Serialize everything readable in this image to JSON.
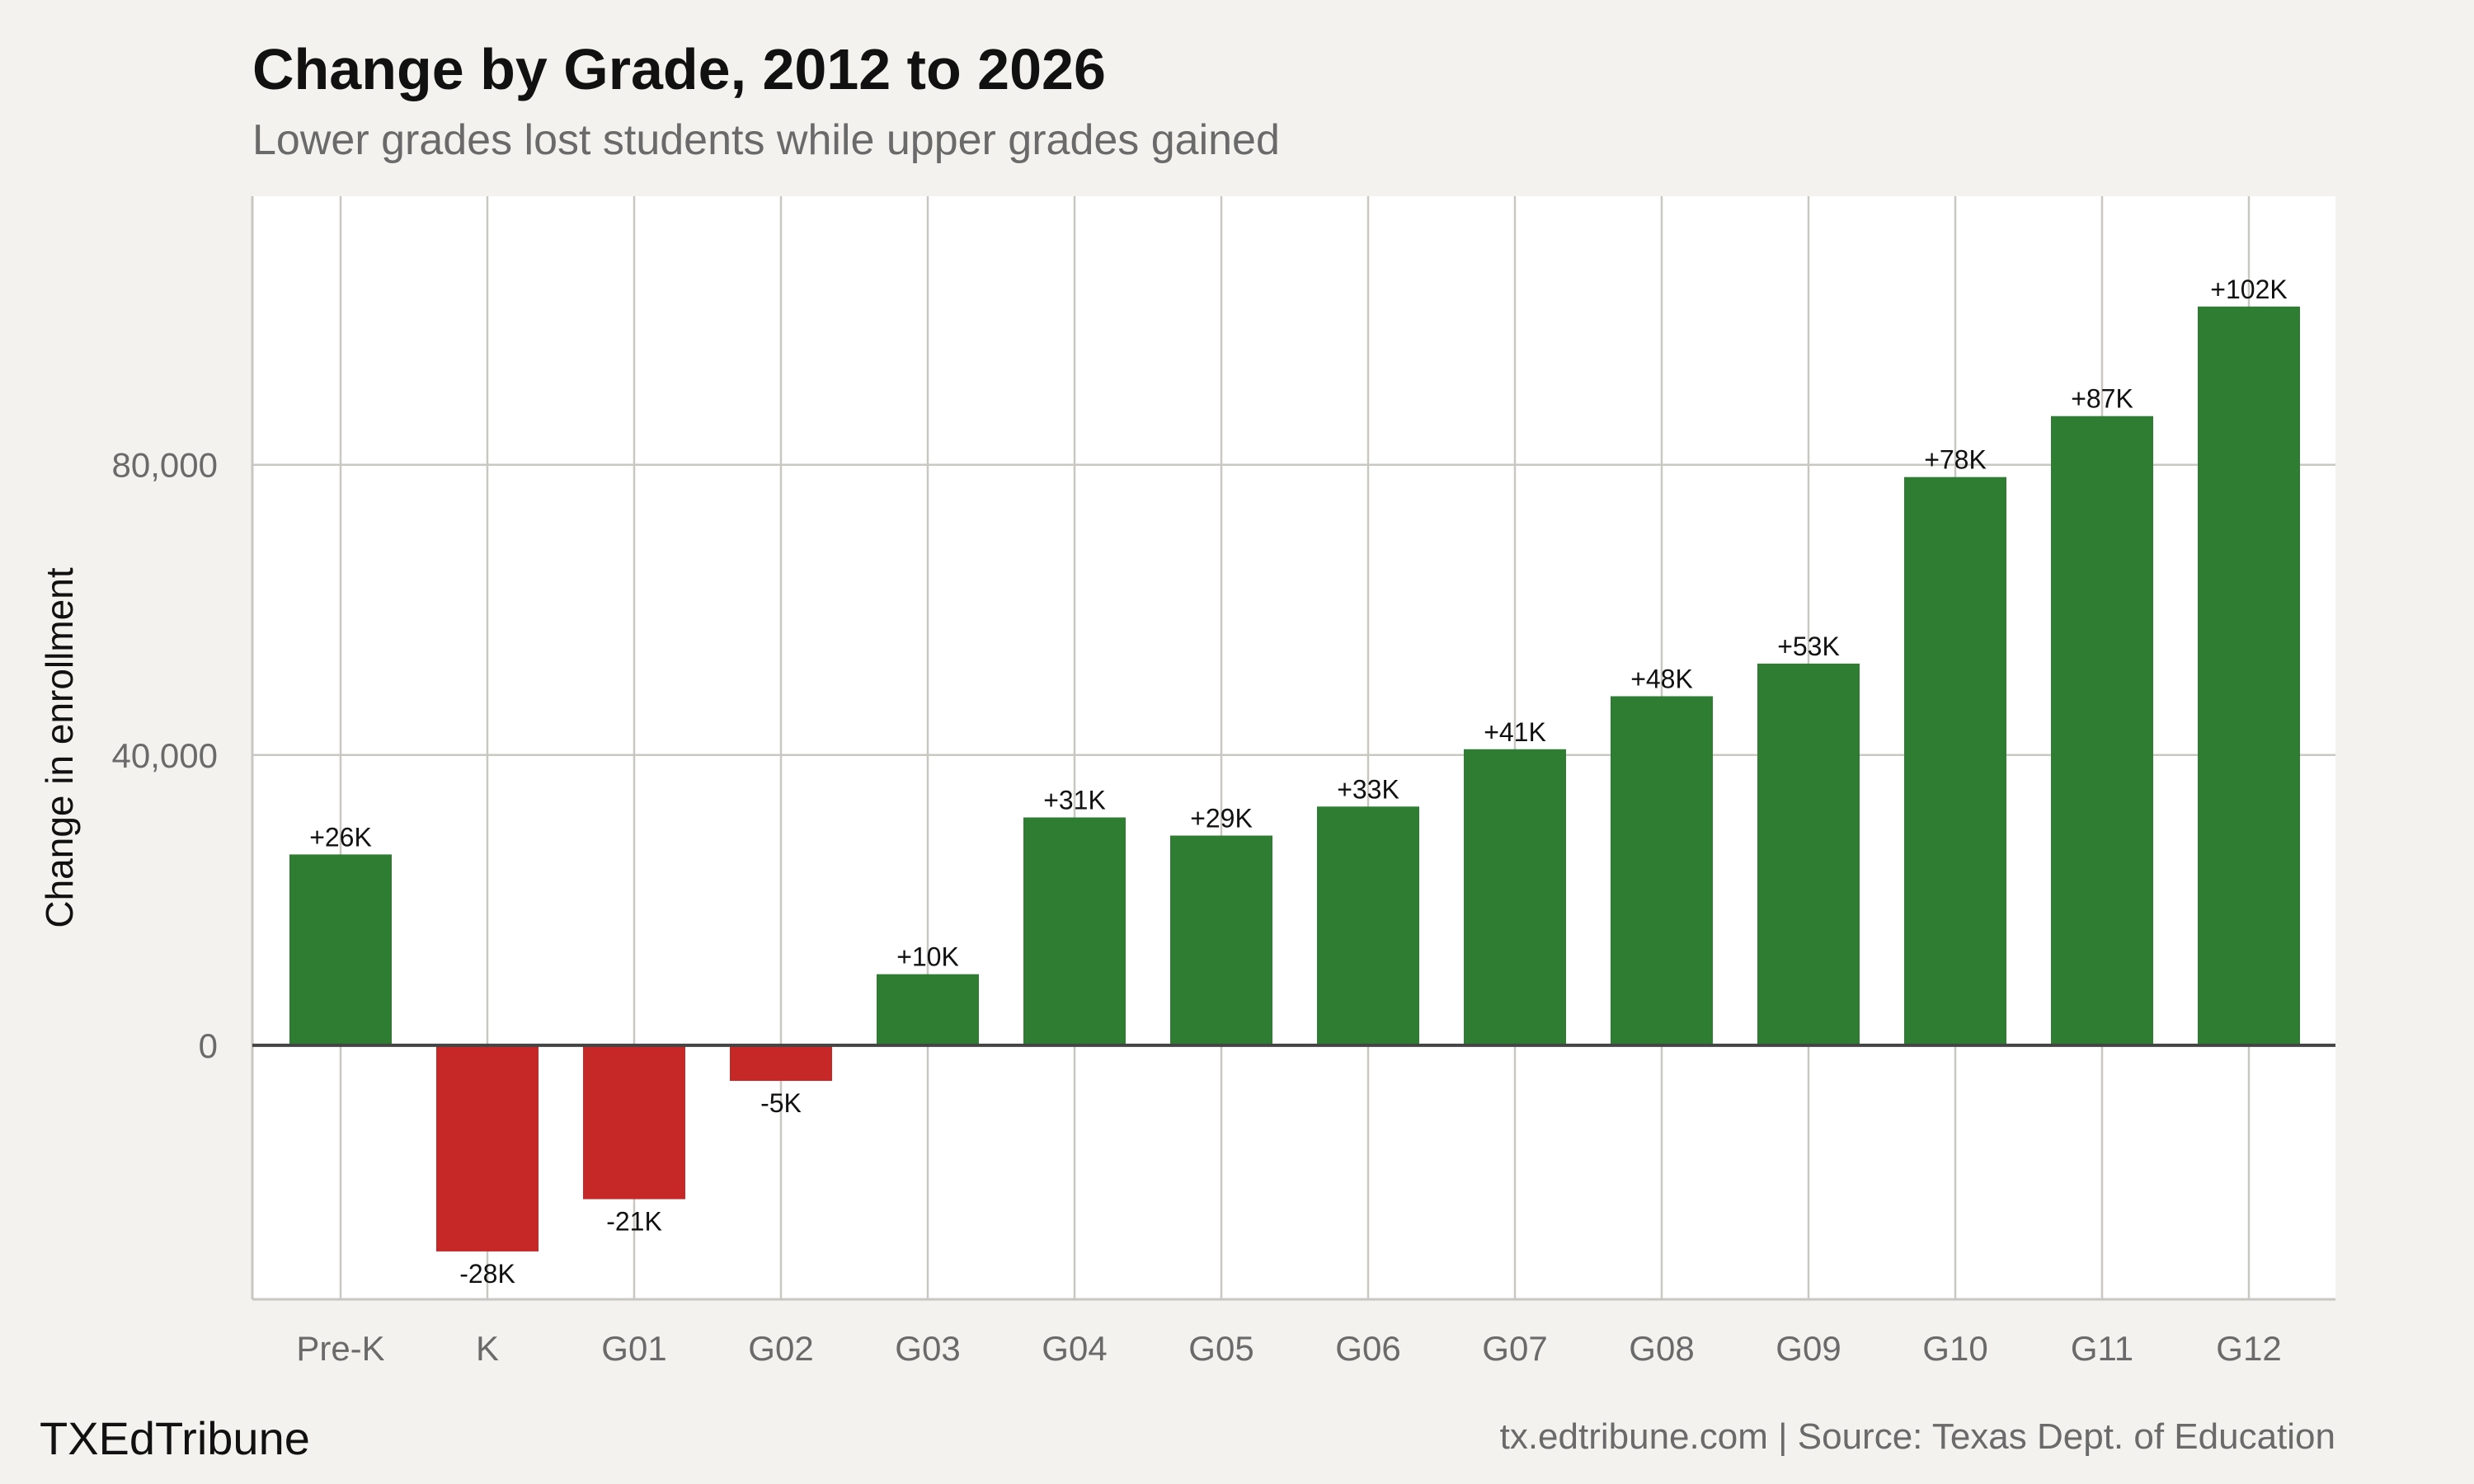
{
  "header": {
    "title": "Change by Grade, 2012 to 2026",
    "subtitle": "Lower grades lost students while upper grades gained"
  },
  "footer": {
    "brand": "TXEdTribune",
    "source": "tx.edtribune.com | Source: Texas Dept. of Education"
  },
  "colors": {
    "positive": "#2e7d32",
    "negative": "#c62828",
    "panel": "#ffffff",
    "background": "#f4f2ee",
    "grid": "#c9c7c2",
    "zero_line": "#444444"
  },
  "chart_data": {
    "type": "bar",
    "categories": [
      "Pre-K",
      "K",
      "G01",
      "G02",
      "G03",
      "G04",
      "G05",
      "G06",
      "G07",
      "G08",
      "G09",
      "G10",
      "G11",
      "G12"
    ],
    "values": [
      26300,
      -28400,
      -21200,
      -4900,
      9800,
      31400,
      28900,
      32900,
      40800,
      48100,
      52600,
      78300,
      86700,
      101800
    ],
    "data_labels": [
      "+26K",
      "-28K",
      "-21K",
      "-5K",
      "+10K",
      "+31K",
      "+29K",
      "+33K",
      "+41K",
      "+48K",
      "+53K",
      "+78K",
      "+87K",
      "+102K"
    ],
    "ylabel": "Change in enrollment",
    "xlabel": "",
    "ylim": [
      -35000,
      117000
    ],
    "y_ticks": [
      0,
      40000,
      80000
    ],
    "y_tick_labels": [
      "0",
      "40,000",
      "80,000"
    ],
    "grid": true,
    "legend": "none"
  }
}
